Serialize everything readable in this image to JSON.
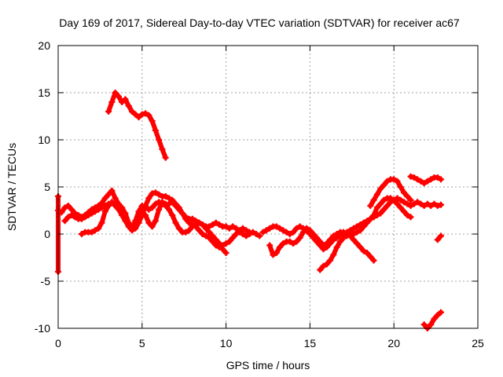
{
  "chart_data": {
    "type": "scatter",
    "title": "Day 169 of 2017, Sidereal Day-to-day VTEC variation (SDTVAR) for receiver ac67",
    "xlabel": "GPS time / hours",
    "ylabel": "SDTVAR / TECUs",
    "xlim": [
      0,
      25
    ],
    "ylim": [
      -10,
      20
    ],
    "xticks": [
      0,
      5,
      10,
      15,
      20,
      25
    ],
    "yticks": [
      -10,
      -5,
      0,
      5,
      10,
      15,
      20
    ],
    "xtick_labels": [
      "0",
      "5",
      "10",
      "15",
      "20",
      "25"
    ],
    "ytick_labels": [
      "-10",
      "-5",
      "0",
      "5",
      "10",
      "15",
      "20"
    ],
    "grid": true,
    "marker": "plus",
    "series_color": "#ff0000",
    "series": [
      {
        "name": "s1",
        "x": [
          3.0,
          3.2,
          3.4,
          3.6,
          3.8,
          4.0,
          4.2,
          4.4,
          4.6,
          4.8,
          5.0,
          5.2,
          5.4,
          5.6,
          5.8,
          6.0,
          6.2,
          6.4
        ],
        "y": [
          13.0,
          14.0,
          15.0,
          14.6,
          14.0,
          14.3,
          13.6,
          13.0,
          12.7,
          12.4,
          12.7,
          12.8,
          12.6,
          12.0,
          11.0,
          10.0,
          9.0,
          8.1
        ]
      },
      {
        "name": "s2",
        "x": [
          0.0,
          0.0,
          0.0
        ],
        "y": [
          4.0,
          2.5,
          -4.0
        ]
      },
      {
        "name": "s3",
        "x": [
          0.2,
          0.4,
          0.6,
          0.8,
          1.0,
          1.2,
          1.4,
          1.6,
          1.8,
          2.0,
          2.2,
          2.4,
          2.6,
          2.8,
          3.0,
          3.2,
          3.4,
          3.6,
          3.8,
          4.0,
          4.2,
          4.4,
          4.6,
          4.8,
          5.0,
          5.2,
          5.4,
          5.6,
          5.8,
          6.0,
          6.2,
          6.4,
          6.6,
          6.8,
          7.0,
          7.2,
          7.4,
          7.6,
          7.8,
          8.0,
          8.2,
          8.4,
          8.6,
          8.8,
          9.0,
          9.2,
          9.4,
          9.6,
          9.8,
          10.0,
          10.2,
          10.4,
          10.6,
          10.8,
          11.0,
          11.2,
          11.4,
          11.6,
          11.8,
          12.0
        ],
        "y": [
          2.3,
          2.8,
          3.0,
          2.6,
          2.2,
          2.0,
          1.8,
          2.0,
          2.3,
          2.6,
          2.8,
          3.0,
          3.3,
          3.8,
          4.2,
          4.6,
          3.8,
          3.2,
          2.8,
          2.2,
          1.2,
          0.6,
          1.4,
          2.4,
          3.0,
          2.8,
          2.6,
          2.8,
          3.2,
          3.4,
          3.2,
          3.0,
          3.2,
          3.4,
          3.0,
          2.6,
          2.2,
          1.8,
          1.6,
          1.6,
          1.4,
          1.2,
          1.0,
          0.8,
          0.8,
          1.0,
          1.2,
          1.0,
          0.8,
          0.8,
          0.6,
          0.8,
          0.6,
          0.2,
          0.0,
          -0.2,
          0.0,
          0.2,
          0.0,
          -0.2
        ]
      },
      {
        "name": "s4",
        "x": [
          1.4,
          1.6,
          1.8,
          2.0,
          2.2,
          2.4,
          2.6,
          2.8,
          3.0,
          3.2,
          3.4,
          3.6,
          3.8,
          4.0,
          4.2,
          4.4,
          4.6,
          4.8,
          5.0,
          5.2,
          5.4,
          5.6,
          5.8,
          6.0,
          6.2,
          6.4,
          6.6,
          6.8,
          7.0,
          7.2,
          7.4,
          7.6,
          7.8,
          8.0,
          8.2,
          8.4,
          8.6,
          8.8,
          9.0,
          9.2,
          9.4,
          9.6,
          9.8,
          10.0,
          10.2,
          10.4,
          10.6,
          10.8,
          11.0,
          11.2,
          11.4
        ],
        "y": [
          0.0,
          0.2,
          0.2,
          0.2,
          0.4,
          0.6,
          1.2,
          2.4,
          3.0,
          3.4,
          3.0,
          2.6,
          2.0,
          1.4,
          0.8,
          0.4,
          0.6,
          1.2,
          2.0,
          3.0,
          3.8,
          4.3,
          4.4,
          4.2,
          4.0,
          4.0,
          3.8,
          3.6,
          3.2,
          2.8,
          2.2,
          1.6,
          1.2,
          1.0,
          0.8,
          0.4,
          0.0,
          -0.2,
          -0.4,
          -0.8,
          -1.2,
          -1.4,
          -1.2,
          -1.0,
          -0.8,
          -0.4,
          0.0,
          0.4,
          0.6,
          0.4,
          0.2
        ]
      },
      {
        "name": "s5",
        "x": [
          5.2,
          5.4,
          5.6,
          5.8,
          6.0,
          6.2,
          6.4,
          6.6,
          6.8,
          7.0,
          7.2,
          7.4,
          7.6,
          7.8,
          8.0,
          8.2,
          8.4,
          8.6,
          8.8,
          9.0,
          9.2,
          9.4,
          9.6,
          9.8,
          10.0
        ],
        "y": [
          2.0,
          1.2,
          0.8,
          1.4,
          2.6,
          3.4,
          3.2,
          2.6,
          2.0,
          1.2,
          0.6,
          0.2,
          0.2,
          0.4,
          0.8,
          1.0,
          1.2,
          1.0,
          0.6,
          0.2,
          -0.2,
          -0.6,
          -1.0,
          -1.6,
          -2.0
        ]
      },
      {
        "name": "s6",
        "x": [
          0.4,
          0.6,
          0.8,
          1.0,
          1.2,
          1.4,
          1.6,
          1.8,
          2.0,
          2.2,
          2.4,
          2.6,
          2.8,
          3.0
        ],
        "y": [
          1.4,
          1.8,
          2.0,
          1.8,
          1.6,
          1.6,
          1.8,
          2.0,
          2.2,
          2.4,
          2.6,
          2.8,
          3.0,
          3.2
        ]
      },
      {
        "name": "s7",
        "x": [
          12.2,
          12.4,
          12.6,
          12.8,
          13.0,
          13.2,
          13.4,
          13.6,
          13.8,
          14.0,
          14.2,
          14.4,
          14.6,
          14.8,
          15.0,
          15.2,
          15.4,
          15.6,
          15.8,
          16.0,
          16.2,
          16.4,
          16.6,
          16.8,
          17.0,
          17.2,
          17.4,
          17.6,
          17.8,
          18.0,
          18.2,
          18.4,
          18.6,
          18.8,
          19.0,
          19.2,
          19.4,
          19.6,
          19.8,
          20.0,
          20.2,
          20.4,
          20.6,
          20.8,
          21.0,
          21.2,
          21.4,
          21.6,
          21.8,
          22.0,
          22.2,
          22.4,
          22.6,
          22.8
        ],
        "y": [
          0.2,
          0.4,
          0.6,
          0.8,
          0.8,
          0.6,
          0.4,
          0.2,
          0.0,
          0.2,
          0.6,
          0.8,
          0.6,
          0.4,
          0.0,
          -0.4,
          -0.8,
          -1.2,
          -1.6,
          -1.4,
          -1.0,
          -0.6,
          -0.4,
          -0.2,
          0.0,
          0.2,
          0.4,
          0.6,
          0.8,
          1.0,
          1.2,
          1.4,
          1.6,
          1.8,
          2.0,
          2.2,
          2.6,
          3.0,
          3.4,
          3.6,
          3.8,
          3.6,
          3.4,
          3.2,
          3.0,
          3.2,
          3.4,
          3.2,
          3.0,
          3.2,
          3.0,
          3.2,
          3.0,
          3.1
        ]
      },
      {
        "name": "s8",
        "x": [
          12.6,
          12.8,
          13.0,
          13.2,
          13.4,
          13.6,
          13.8,
          14.0,
          14.2,
          14.4,
          14.6,
          14.8,
          15.0,
          15.2,
          15.4,
          15.6,
          15.8,
          16.0,
          16.2,
          16.4,
          16.6,
          16.8,
          17.0,
          17.2,
          17.4,
          17.6,
          17.8,
          18.0,
          18.2,
          18.4,
          18.6,
          18.8
        ],
        "y": [
          -1.2,
          -2.2,
          -2.0,
          -1.4,
          -1.0,
          -0.8,
          -0.8,
          -1.0,
          -0.8,
          -0.4,
          0.2,
          0.6,
          0.4,
          0.0,
          -0.4,
          -0.8,
          -1.2,
          -1.0,
          -0.6,
          -0.2,
          0.0,
          0.2,
          0.2,
          0.0,
          -0.2,
          -0.6,
          -1.0,
          -1.4,
          -1.8,
          -2.0,
          -2.4,
          -2.8
        ]
      },
      {
        "name": "s9",
        "x": [
          15.6,
          15.8,
          16.0,
          16.2,
          16.4,
          16.6,
          16.8,
          17.0,
          17.2,
          17.4,
          17.6,
          17.8,
          18.0,
          18.2,
          18.4,
          18.6,
          18.8,
          19.0,
          19.2,
          19.4,
          19.6,
          19.8,
          20.0,
          20.2,
          20.4,
          20.6,
          20.8,
          21.0
        ],
        "y": [
          -3.8,
          -3.4,
          -3.2,
          -2.8,
          -2.2,
          -1.4,
          -0.8,
          -0.4,
          -0.2,
          0.0,
          0.0,
          0.2,
          0.4,
          0.8,
          1.2,
          1.6,
          2.0,
          2.8,
          3.2,
          3.6,
          3.8,
          3.8,
          3.6,
          3.2,
          2.8,
          2.4,
          2.0,
          1.8
        ]
      },
      {
        "name": "s10",
        "x": [
          18.6,
          18.8,
          19.0,
          19.2,
          19.4,
          19.6,
          19.8,
          20.0,
          20.2,
          20.4,
          20.6,
          20.8,
          21.0
        ],
        "y": [
          3.0,
          3.6,
          4.2,
          4.8,
          5.2,
          5.6,
          5.8,
          5.8,
          5.6,
          5.0,
          4.4,
          4.0,
          3.6
        ]
      },
      {
        "name": "s11",
        "x": [
          21.0,
          21.2,
          21.4,
          21.6,
          21.8,
          22.0,
          22.2,
          22.4,
          22.6,
          22.8
        ],
        "y": [
          6.1,
          6.0,
          5.8,
          5.6,
          5.4,
          5.6,
          5.8,
          6.0,
          6.0,
          5.8
        ]
      },
      {
        "name": "s12",
        "x": [
          22.6,
          22.8
        ],
        "y": [
          -0.6,
          -0.2
        ]
      },
      {
        "name": "s13",
        "x": [
          21.8,
          22.0,
          22.2,
          22.4,
          22.6,
          22.8
        ],
        "y": [
          -9.6,
          -10.0,
          -9.6,
          -9.0,
          -8.6,
          -8.3
        ]
      }
    ]
  }
}
